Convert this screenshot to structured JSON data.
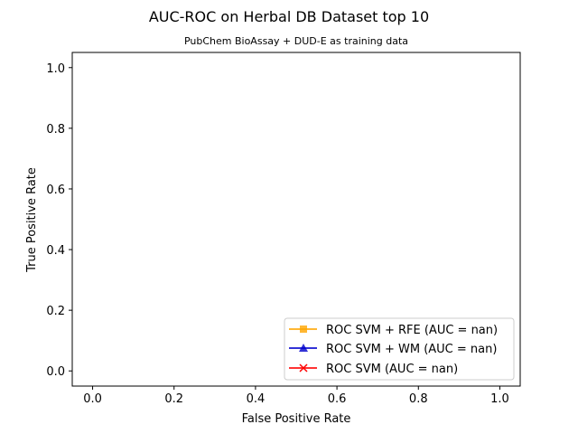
{
  "chart_data": {
    "type": "line",
    "title": "AUC-ROC on Herbal DB Dataset top 10",
    "subtitle": "PubChem BioAssay + DUD-E as training data",
    "xlabel": "False Positive Rate",
    "ylabel": "True Positive Rate",
    "xlim": [
      -0.05,
      1.05
    ],
    "ylim": [
      -0.05,
      1.05
    ],
    "xticks": [
      "0.0",
      "0.2",
      "0.4",
      "0.6",
      "0.8",
      "1.0"
    ],
    "yticks": [
      "0.0",
      "0.2",
      "0.4",
      "0.6",
      "0.8",
      "1.0"
    ],
    "grid": false,
    "legend_position": "lower-right",
    "series": [
      {
        "name": "ROC SVM + RFE (AUC = nan)",
        "color": "#ffa500",
        "marker": "square",
        "x": [],
        "y": []
      },
      {
        "name": "ROC SVM + WM (AUC = nan)",
        "color": "#0000cc",
        "marker": "triangle",
        "x": [],
        "y": []
      },
      {
        "name": "ROC SVM (AUC = nan)",
        "color": "#ff0000",
        "marker": "x",
        "x": [],
        "y": []
      }
    ]
  }
}
